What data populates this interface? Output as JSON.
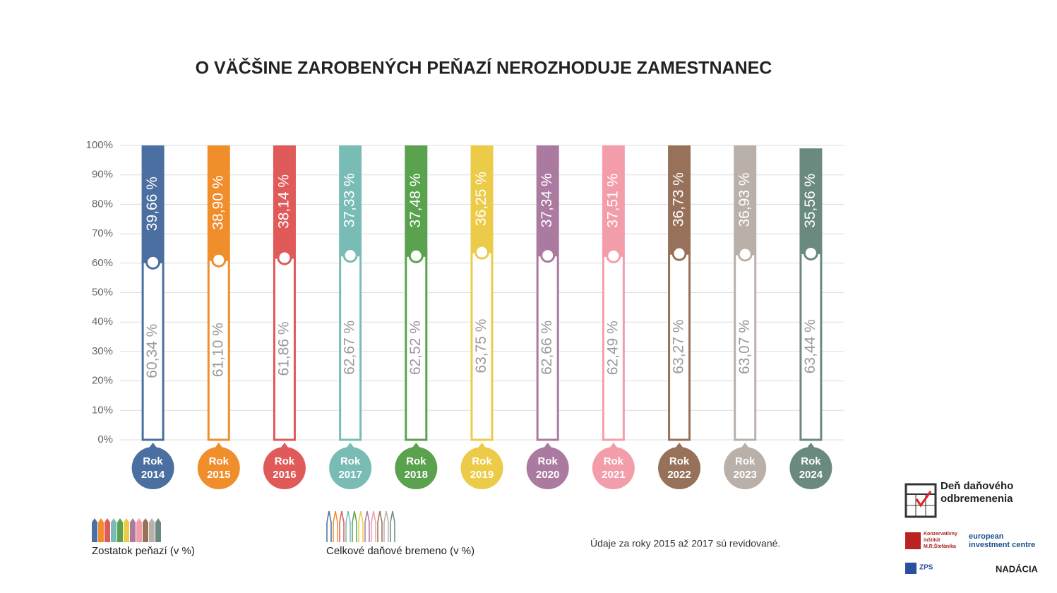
{
  "chart_data": {
    "type": "bar",
    "stacked": true,
    "title": "O VÄČŠINE ZAROBENÝCH PEŇAZÍ NEROZHODUJE ZAMESTNANEC",
    "categories": [
      "Rok 2014",
      "Rok 2015",
      "Rok 2016",
      "Rok 2017",
      "Rok 2018",
      "Rok 2019",
      "Rok 2020",
      "Rok 2021",
      "Rok 2022",
      "Rok 2023",
      "Rok 2024"
    ],
    "colors": [
      "#4a6fa0",
      "#f18e2c",
      "#e05a5a",
      "#79bcb6",
      "#5aa24e",
      "#eccb49",
      "#ab7aa0",
      "#f49daa",
      "#977159",
      "#bab0aa",
      "#6a8a80"
    ],
    "series": [
      {
        "name": "Celkové daňové bremeno (v %)",
        "style": "outline",
        "values": [
          60.34,
          61.1,
          61.86,
          62.67,
          62.52,
          63.75,
          62.66,
          62.49,
          63.27,
          63.07,
          63.44
        ],
        "value_labels": [
          "60,34 %",
          "61,10 %",
          "61,86 %",
          "62,67 %",
          "62,52 %",
          "63,75 %",
          "62,66 %",
          "62,49 %",
          "63,27 %",
          "63,07 %",
          "63,44 %"
        ]
      },
      {
        "name": "Zostatok peňazí (v %)",
        "style": "filled",
        "values": [
          39.66,
          38.9,
          38.14,
          37.33,
          37.48,
          36.25,
          37.34,
          37.51,
          36.73,
          36.93,
          35.56
        ],
        "value_labels": [
          "39,66 %",
          "38,90 %",
          "38,14 %",
          "37,33 %",
          "37,48 %",
          "36,25 %",
          "37,34 %",
          "37,51 %",
          "36,73 %",
          "36,93 %",
          "35,56 %"
        ]
      }
    ],
    "ylim": [
      0,
      100
    ],
    "yticks": [
      {
        "value": 0,
        "label": "0%"
      },
      {
        "value": 10,
        "label": "10%"
      },
      {
        "value": 20,
        "label": "20%"
      },
      {
        "value": 30,
        "label": "30%"
      },
      {
        "value": 40,
        "label": "40%"
      },
      {
        "value": 50,
        "label": "50%"
      },
      {
        "value": 60,
        "label": "60%"
      },
      {
        "value": 70,
        "label": "70%"
      },
      {
        "value": 80,
        "label": "80%"
      },
      {
        "value": 90,
        "label": "90%"
      },
      {
        "value": 100,
        "label": "100%"
      }
    ],
    "grid": true,
    "note": "Údaje za roky 2015 až 2017 sú revidované."
  },
  "logos": [
    "Deň daňového odbremenenia",
    "Konzervatívny inštitút M.R.Štefánika",
    "european investment centre",
    "ZPS",
    "NADÁCIA"
  ]
}
